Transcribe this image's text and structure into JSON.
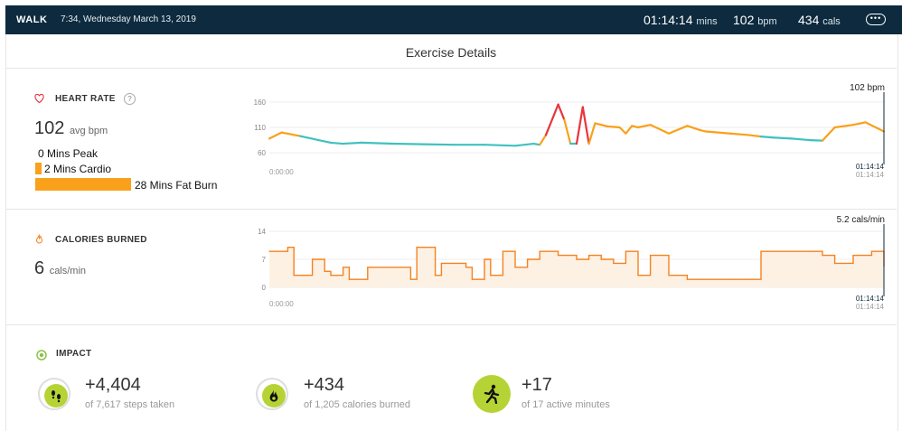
{
  "header": {
    "activity": "WALK",
    "datetime": "7:34, Wednesday March 13, 2019",
    "duration": "01:14:14",
    "duration_unit": "mins",
    "bpm": "102",
    "bpm_unit": "bpm",
    "cals": "434",
    "cals_unit": "cals",
    "more_icon": "ellipsis-icon"
  },
  "page_title": "Exercise Details",
  "heart_rate": {
    "label": "HEART RATE",
    "help": "?",
    "value": "102",
    "unit": "avg bpm",
    "zones": [
      {
        "label": "0 Mins Peak",
        "minutes": 0
      },
      {
        "label": "2 Mins Cardio",
        "minutes": 2
      },
      {
        "label": "28 Mins Fat Burn",
        "minutes": 28
      }
    ],
    "color": "#f9a11b"
  },
  "calories": {
    "label": "CALORIES BURNED",
    "value": "6",
    "unit": "cals/min"
  },
  "impact": {
    "label": "IMPACT",
    "items": [
      {
        "value": "+4,404",
        "sub": "of 7,617 steps taken",
        "icon": "footsteps-icon"
      },
      {
        "value": "+434",
        "sub": "of 1,205 calories burned",
        "icon": "flame-icon"
      },
      {
        "value": "+17",
        "sub": "of 17 active minutes",
        "icon": "runner-icon"
      }
    ]
  },
  "chart_data": [
    {
      "type": "line",
      "yticks": [
        60,
        110,
        160
      ],
      "ylim": [
        55,
        165
      ],
      "x_start": "0:00:00",
      "x_end": "01:14:14",
      "x_end_secondary": "01:14:14",
      "current_label": "102 bpm",
      "zone_colors": {
        "below": "#3fc1c0",
        "fat_burn": "#f9a11b",
        "cardio": "#f5a623",
        "peak": "#e8343c"
      },
      "series": [
        {
          "x": [
            0,
            0.02,
            0.05,
            0.08,
            0.1,
            0.12,
            0.15,
            0.2,
            0.25,
            0.3,
            0.35,
            0.4,
            0.43,
            0.44,
            0.45,
            0.47,
            0.48,
            0.49,
            0.5,
            0.51,
            0.52,
            0.53,
            0.55,
            0.57,
            0.58,
            0.59,
            0.6,
            0.62,
            0.65,
            0.68,
            0.7,
            0.71,
            0.73,
            0.75,
            0.78,
            0.8,
            0.82,
            0.85,
            0.88,
            0.9,
            0.92,
            0.95,
            0.97,
            1.0
          ],
          "y": [
            88,
            100,
            93,
            85,
            80,
            78,
            80,
            78,
            77,
            76,
            76,
            74,
            78,
            76,
            95,
            155,
            125,
            78,
            78,
            150,
            78,
            118,
            112,
            110,
            98,
            113,
            110,
            115,
            98,
            113,
            105,
            102,
            100,
            98,
            95,
            92,
            90,
            88,
            85,
            84,
            110,
            115,
            120,
            102
          ]
        }
      ]
    },
    {
      "type": "area",
      "yticks": [
        0,
        7,
        14
      ],
      "ylim": [
        0,
        14
      ],
      "x_start": "0:00:00",
      "x_end": "01:14:14",
      "x_end_secondary": "01:14:14",
      "current_label": "5.2 cals/min",
      "series": [
        {
          "x": [
            0,
            0.03,
            0.04,
            0.06,
            0.07,
            0.09,
            0.1,
            0.12,
            0.13,
            0.16,
            0.23,
            0.24,
            0.27,
            0.28,
            0.32,
            0.33,
            0.35,
            0.36,
            0.38,
            0.4,
            0.42,
            0.44,
            0.47,
            0.5,
            0.52,
            0.54,
            0.56,
            0.58,
            0.6,
            0.62,
            0.65,
            0.68,
            0.7,
            0.75,
            0.78,
            0.8,
            0.85,
            0.88,
            0.9,
            0.92,
            0.95,
            0.98,
            1.0
          ],
          "y": [
            9,
            10,
            3,
            3,
            7,
            4,
            3,
            5,
            2,
            5,
            2,
            10,
            3,
            6,
            5,
            2,
            7,
            3,
            9,
            5,
            7,
            9,
            8,
            7,
            8,
            7,
            6,
            9,
            3,
            8,
            3,
            2,
            2,
            2,
            2,
            9,
            9,
            9,
            8,
            6,
            8,
            9,
            5.2
          ]
        }
      ]
    }
  ]
}
